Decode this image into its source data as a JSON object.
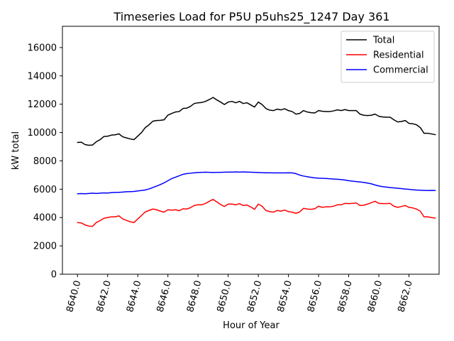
{
  "chart_data": {
    "type": "line",
    "title": "Timeseries Load for P5U p5uhs25_1247  Day 361",
    "xlabel": "Hour of Year",
    "ylabel": "kW total",
    "xlim": [
      8639.0,
      8664.0
    ],
    "ylim": [
      0,
      17500
    ],
    "xticks": [
      8640,
      8642,
      8644,
      8646,
      8648,
      8650,
      8652,
      8654,
      8656,
      8658,
      8660,
      8662
    ],
    "xtick_labels": [
      "8640.0",
      "8642.0",
      "8644.0",
      "8646.0",
      "8648.0",
      "8650.0",
      "8652.0",
      "8654.0",
      "8656.0",
      "8658.0",
      "8660.0",
      "8662.0"
    ],
    "yticks": [
      0,
      2000,
      4000,
      6000,
      8000,
      10000,
      12000,
      14000,
      16000
    ],
    "ytick_labels": [
      "0",
      "2000",
      "4000",
      "6000",
      "8000",
      "10000",
      "12000",
      "14000",
      "16000"
    ],
    "grid": false,
    "legend_position": "top-right",
    "x_start": 8640.0,
    "x_step": 0.25,
    "series": [
      {
        "name": "Total",
        "color": "#000000",
        "values": [
          9300,
          9320,
          9150,
          9100,
          9120,
          9350,
          9500,
          9720,
          9740,
          9820,
          9840,
          9910,
          9700,
          9620,
          9550,
          9500,
          9750,
          10000,
          10350,
          10550,
          10800,
          10850,
          10860,
          10900,
          11230,
          11350,
          11450,
          11480,
          11700,
          11720,
          11850,
          12050,
          12100,
          12120,
          12200,
          12330,
          12480,
          12300,
          12150,
          11980,
          12150,
          12200,
          12100,
          12200,
          12050,
          12100,
          11950,
          11800,
          12150,
          11980,
          11700,
          11580,
          11550,
          11650,
          11600,
          11680,
          11550,
          11480,
          11300,
          11350,
          11550,
          11450,
          11400,
          11380,
          11550,
          11500,
          11480,
          11480,
          11530,
          11600,
          11550,
          11620,
          11550,
          11550,
          11550,
          11300,
          11220,
          11200,
          11220,
          11300,
          11150,
          11100,
          11080,
          11080,
          10900,
          10750,
          10780,
          10850,
          10650,
          10620,
          10550,
          10350,
          9950,
          9950,
          9900,
          9850
        ]
      },
      {
        "name": "Residential",
        "color": "#ff0000",
        "values": [
          3650,
          3620,
          3480,
          3400,
          3380,
          3650,
          3780,
          3950,
          4000,
          4050,
          4050,
          4120,
          3900,
          3800,
          3700,
          3650,
          3900,
          4150,
          4400,
          4500,
          4600,
          4550,
          4450,
          4380,
          4550,
          4520,
          4550,
          4480,
          4620,
          4600,
          4700,
          4850,
          4900,
          4900,
          5000,
          5150,
          5280,
          5100,
          4920,
          4780,
          4950,
          4950,
          4900,
          4980,
          4850,
          4880,
          4750,
          4580,
          4950,
          4800,
          4500,
          4420,
          4380,
          4500,
          4450,
          4530,
          4420,
          4380,
          4300,
          4400,
          4650,
          4600,
          4580,
          4620,
          4800,
          4720,
          4760,
          4760,
          4800,
          4900,
          4900,
          5000,
          4980,
          5000,
          5030,
          4850,
          4870,
          4950,
          5050,
          5150,
          5000,
          4980,
          4980,
          5000,
          4800,
          4720,
          4780,
          4850,
          4720,
          4680,
          4600,
          4450,
          4050,
          4050,
          4000,
          3960
        ]
      },
      {
        "name": "Commercial",
        "color": "#0000ff",
        "values": [
          5680,
          5690,
          5680,
          5700,
          5720,
          5700,
          5720,
          5740,
          5730,
          5760,
          5780,
          5780,
          5800,
          5820,
          5830,
          5840,
          5880,
          5910,
          5950,
          6020,
          6120,
          6220,
          6330,
          6450,
          6600,
          6750,
          6850,
          6950,
          7050,
          7100,
          7130,
          7160,
          7180,
          7190,
          7200,
          7190,
          7180,
          7190,
          7190,
          7200,
          7210,
          7210,
          7220,
          7210,
          7220,
          7210,
          7200,
          7190,
          7180,
          7170,
          7160,
          7160,
          7150,
          7150,
          7150,
          7150,
          7160,
          7150,
          7100,
          7000,
          6930,
          6880,
          6840,
          6800,
          6780,
          6770,
          6760,
          6740,
          6720,
          6700,
          6680,
          6650,
          6600,
          6570,
          6540,
          6510,
          6480,
          6430,
          6380,
          6300,
          6230,
          6180,
          6150,
          6120,
          6090,
          6070,
          6040,
          6010,
          5990,
          5960,
          5940,
          5930,
          5920,
          5910,
          5920,
          5910
        ]
      }
    ]
  }
}
